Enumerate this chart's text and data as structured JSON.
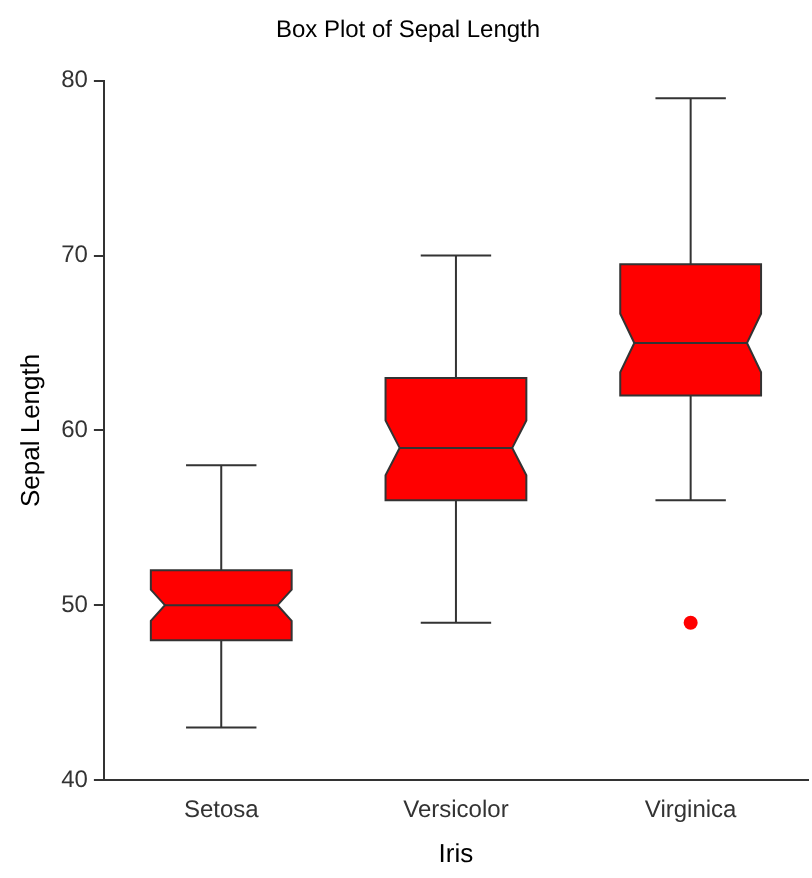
{
  "chart_data": {
    "type": "box",
    "title": "Box Plot of Sepal Length",
    "xlabel": "Iris",
    "ylabel": "Sepal Length",
    "categories": [
      "Setosa",
      "Versicolor",
      "Virginica"
    ],
    "color": "#ff0000",
    "boxes": [
      {
        "low": 43,
        "q1": 48,
        "median": 50,
        "q3": 52,
        "high": 58
      },
      {
        "low": 49,
        "q1": 56,
        "median": 59,
        "q3": 63,
        "high": 70
      },
      {
        "low": 56,
        "q1": 62,
        "median": 65,
        "q3": 69.5,
        "high": 79,
        "outliers": [
          49
        ]
      }
    ],
    "ylim": [
      40,
      80
    ],
    "yticks": [
      40,
      50,
      60,
      70,
      80
    ],
    "grid": false,
    "legend": false
  }
}
